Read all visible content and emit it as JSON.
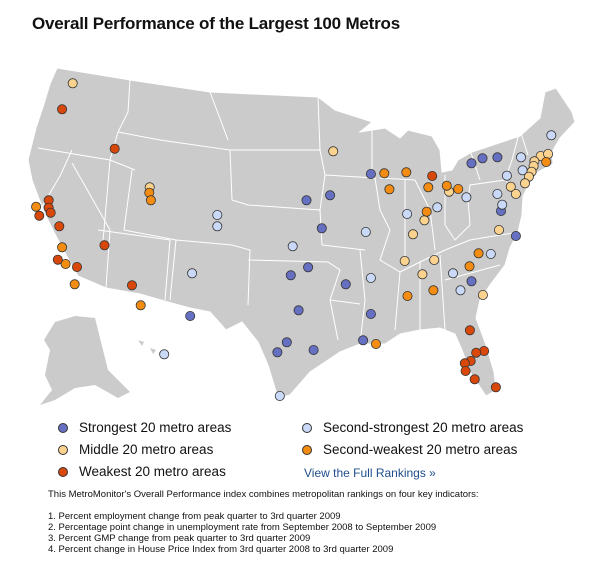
{
  "title": "Overall Performance of the Largest 100 Metros",
  "legend": [
    {
      "key": "strongest",
      "label": "Strongest 20 metro areas",
      "color": "#6670c2"
    },
    {
      "key": "second_strongest",
      "label": "Second-strongest 20 metro areas",
      "color": "#c9d9f7"
    },
    {
      "key": "middle",
      "label": "Middle 20 metro areas",
      "color": "#fbd38f"
    },
    {
      "key": "second_weakest",
      "label": "Second-weakest 20 metro areas",
      "color": "#f28c12"
    },
    {
      "key": "weakest",
      "label": "Weakest 20 metro areas",
      "color": "#d9480b"
    }
  ],
  "link": "View the Full Rankings »",
  "description": "This MetroMonitor's Overall Performance index combines metropolitan rankings on four key indicators:",
  "indicators": [
    "1. Percent employment change from peak quarter to 3rd quarter 2009",
    "2. Percentage point change in unemployment rate from September 2008 to September 2009",
    "3. Percent GMP change from peak quarter to 3rd quarter 2009",
    "4. Percent change in House Price Index from 3rd quarter 2008 to 3rd quarter 2009"
  ],
  "colors": {
    "land": "#cbcbcb",
    "border": "#ffffff"
  }
}
